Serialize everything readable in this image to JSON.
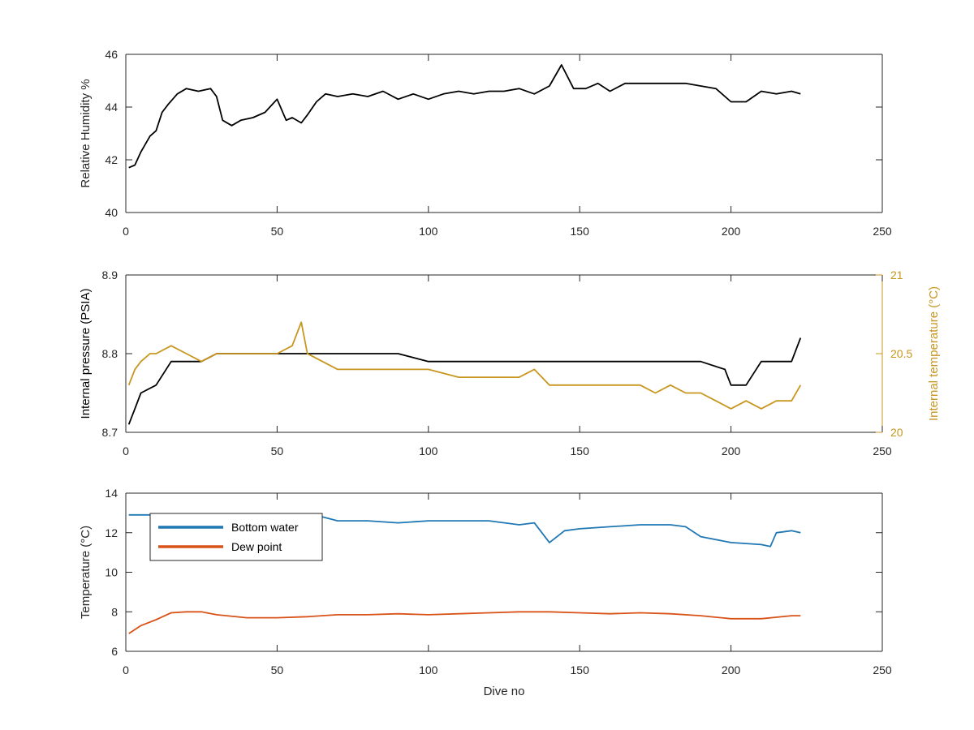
{
  "chart_data": [
    {
      "type": "line",
      "xlabel": "",
      "ylabel": "Relative Humidity %",
      "xlim": [
        0,
        250
      ],
      "ylim": [
        40,
        46
      ],
      "xticks": [
        "0",
        "50",
        "100",
        "150",
        "200",
        "250"
      ],
      "yticks": [
        "40",
        "42",
        "44",
        "46"
      ],
      "grid": false,
      "series": [
        {
          "color": "#000000",
          "x": [
            1,
            3,
            5,
            8,
            10,
            12,
            14,
            17,
            20,
            24,
            28,
            30,
            32,
            35,
            38,
            42,
            46,
            50,
            53,
            55,
            58,
            60,
            63,
            66,
            70,
            75,
            80,
            85,
            90,
            95,
            100,
            105,
            110,
            115,
            120,
            125,
            130,
            135,
            140,
            144,
            148,
            152,
            156,
            160,
            165,
            170,
            175,
            180,
            185,
            190,
            195,
            200,
            205,
            210,
            215,
            220,
            223
          ],
          "y": [
            41.7,
            41.8,
            42.3,
            42.9,
            43.1,
            43.8,
            44.1,
            44.5,
            44.7,
            44.6,
            44.7,
            44.4,
            43.5,
            43.3,
            43.5,
            43.6,
            43.8,
            44.3,
            43.5,
            43.6,
            43.4,
            43.7,
            44.2,
            44.5,
            44.4,
            44.5,
            44.4,
            44.6,
            44.3,
            44.5,
            44.3,
            44.5,
            44.6,
            44.5,
            44.6,
            44.6,
            44.7,
            44.5,
            44.8,
            45.6,
            44.7,
            44.7,
            44.9,
            44.6,
            44.9,
            44.9,
            44.9,
            44.9,
            44.9,
            44.8,
            44.7,
            44.2,
            44.2,
            44.6,
            44.5,
            44.6,
            44.5
          ]
        }
      ]
    },
    {
      "type": "line",
      "xlabel": "",
      "ylabel": "Internal pressure (PSIA)",
      "y2label": "Internal temperature (°C)",
      "xlim": [
        0,
        250
      ],
      "ylim": [
        8.7,
        8.9
      ],
      "y2lim": [
        20,
        21
      ],
      "xticks": [
        "0",
        "50",
        "100",
        "150",
        "200",
        "250"
      ],
      "yticks": [
        "8.7",
        "8.8",
        "8.9"
      ],
      "y2ticks": [
        "20",
        "20.5",
        "21"
      ],
      "grid": false,
      "series": [
        {
          "axis": "left",
          "color": "#000000",
          "x": [
            1,
            3,
            5,
            10,
            15,
            20,
            25,
            30,
            40,
            50,
            60,
            70,
            80,
            90,
            100,
            110,
            120,
            130,
            140,
            150,
            160,
            170,
            180,
            190,
            198,
            200,
            205,
            210,
            215,
            220,
            223
          ],
          "y": [
            8.71,
            8.73,
            8.75,
            8.76,
            8.79,
            8.79,
            8.79,
            8.8,
            8.8,
            8.8,
            8.8,
            8.8,
            8.8,
            8.8,
            8.79,
            8.79,
            8.79,
            8.79,
            8.79,
            8.79,
            8.79,
            8.79,
            8.79,
            8.79,
            8.78,
            8.76,
            8.76,
            8.79,
            8.79,
            8.79,
            8.82
          ]
        },
        {
          "axis": "right",
          "color": "#c8961e",
          "x": [
            1,
            3,
            5,
            8,
            10,
            15,
            20,
            25,
            30,
            35,
            40,
            50,
            55,
            58,
            60,
            65,
            70,
            80,
            90,
            100,
            110,
            120,
            130,
            135,
            140,
            150,
            160,
            170,
            175,
            180,
            185,
            190,
            195,
            200,
            205,
            210,
            215,
            220,
            223
          ],
          "y": [
            20.3,
            20.4,
            20.45,
            20.5,
            20.5,
            20.55,
            20.5,
            20.45,
            20.5,
            20.5,
            20.5,
            20.5,
            20.55,
            20.7,
            20.5,
            20.45,
            20.4,
            20.4,
            20.4,
            20.4,
            20.35,
            20.35,
            20.35,
            20.4,
            20.3,
            20.3,
            20.3,
            20.3,
            20.25,
            20.3,
            20.25,
            20.25,
            20.2,
            20.15,
            20.2,
            20.15,
            20.2,
            20.2,
            20.3
          ]
        }
      ]
    },
    {
      "type": "line",
      "xlabel": "Dive no",
      "ylabel": "Temperature (°C)",
      "xlim": [
        0,
        250
      ],
      "ylim": [
        6,
        14
      ],
      "xticks": [
        "0",
        "50",
        "100",
        "150",
        "200",
        "250"
      ],
      "yticks": [
        "6",
        "8",
        "10",
        "12",
        "14"
      ],
      "legend": "top-left",
      "grid": false,
      "series": [
        {
          "name": "Bottom water",
          "color": "#1f77b4",
          "x": [
            1,
            10,
            20,
            30,
            40,
            50,
            60,
            65,
            70,
            80,
            90,
            100,
            110,
            120,
            130,
            135,
            140,
            145,
            150,
            160,
            170,
            180,
            185,
            190,
            200,
            210,
            213,
            215,
            220,
            223
          ],
          "y": [
            12.9,
            12.9,
            12.8,
            12.8,
            12.8,
            12.7,
            12.8,
            12.8,
            12.6,
            12.6,
            12.5,
            12.6,
            12.6,
            12.6,
            12.4,
            12.5,
            11.5,
            12.1,
            12.2,
            12.3,
            12.4,
            12.4,
            12.3,
            11.8,
            11.5,
            11.4,
            11.3,
            12.0,
            12.1,
            12.0
          ]
        },
        {
          "name": "Dew point",
          "color": "#d95319",
          "x": [
            1,
            5,
            10,
            15,
            20,
            25,
            30,
            40,
            50,
            60,
            70,
            80,
            90,
            100,
            110,
            120,
            130,
            140,
            150,
            160,
            170,
            180,
            190,
            200,
            210,
            220,
            223
          ],
          "y": [
            6.9,
            7.3,
            7.6,
            7.95,
            8.0,
            8.0,
            7.85,
            7.7,
            7.7,
            7.75,
            7.85,
            7.85,
            7.9,
            7.85,
            7.9,
            7.95,
            8.0,
            8.0,
            7.95,
            7.9,
            7.95,
            7.9,
            7.8,
            7.65,
            7.65,
            7.8,
            7.8
          ]
        }
      ]
    }
  ]
}
